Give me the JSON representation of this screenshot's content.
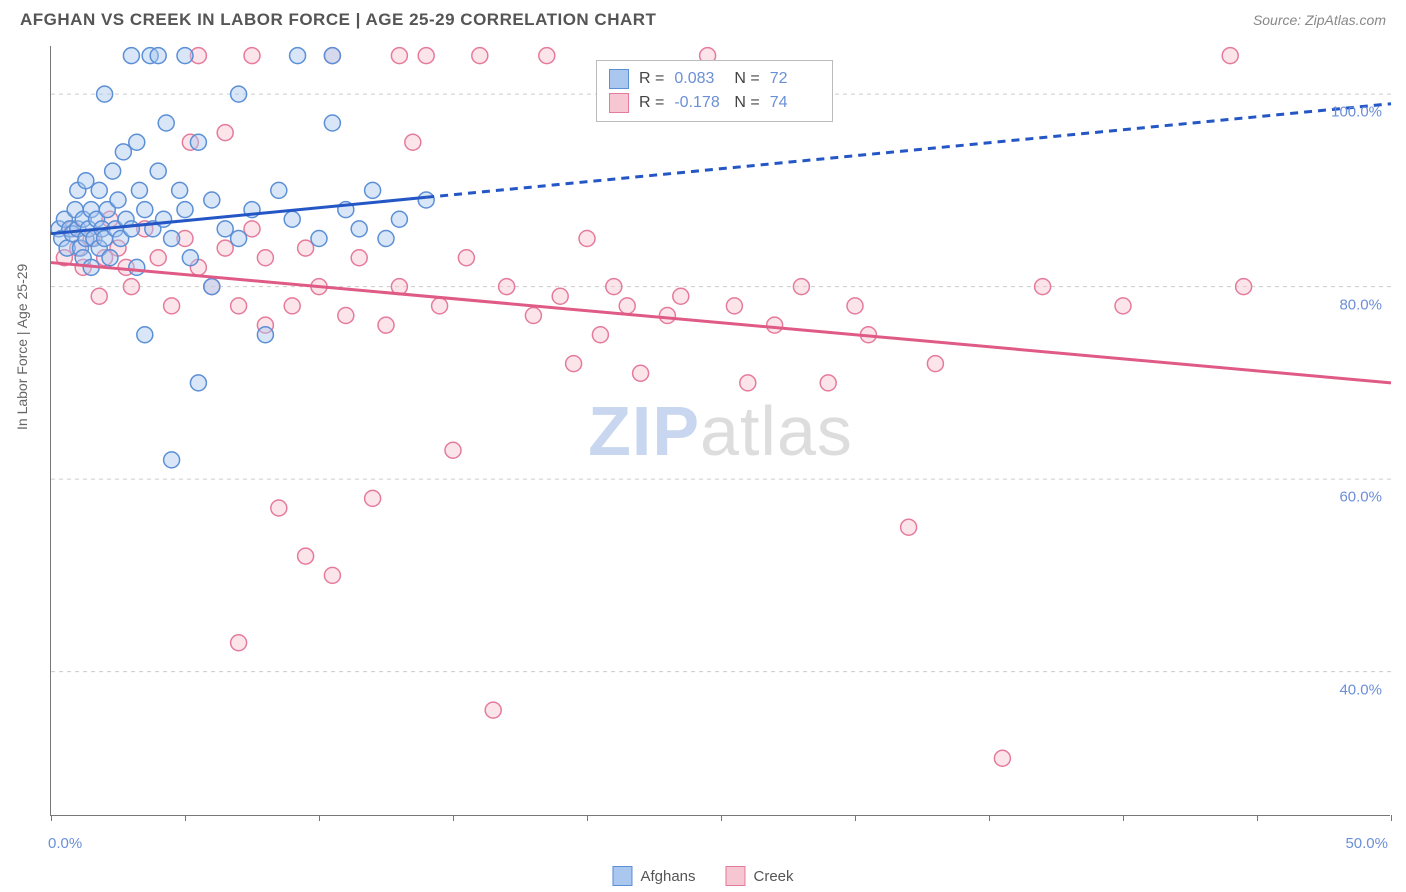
{
  "header": {
    "title": "AFGHAN VS CREEK IN LABOR FORCE | AGE 25-29 CORRELATION CHART",
    "source": "Source: ZipAtlas.com"
  },
  "axes": {
    "y_title": "In Labor Force | Age 25-29",
    "x_min_label": "0.0%",
    "x_max_label": "50.0%",
    "xlim": [
      0,
      50
    ],
    "ylim": [
      25,
      105
    ],
    "x_ticks": [
      0,
      5,
      10,
      15,
      20,
      25,
      30,
      35,
      40,
      45,
      50
    ],
    "y_grid": [
      40,
      60,
      80,
      100
    ],
    "y_labels": [
      "40.0%",
      "60.0%",
      "80.0%",
      "100.0%"
    ]
  },
  "colors": {
    "blue_fill": "#a9c7ef",
    "blue_stroke": "#5b8fd6",
    "pink_fill": "#f6c6d2",
    "pink_stroke": "#e67a9b",
    "blue_line": "#2457c5",
    "pink_line": "#e05a86",
    "grid": "#cccccc",
    "text_axis": "#6b8fd6",
    "bg": "#ffffff"
  },
  "legend_stats": {
    "rows": [
      {
        "swatch_fill": "#a9c7ef",
        "swatch_stroke": "#5b8fd6",
        "r": "0.083",
        "n": "72"
      },
      {
        "swatch_fill": "#f6c6d2",
        "swatch_stroke": "#e67a9b",
        "r": "-0.178",
        "n": "74"
      }
    ],
    "r_label": "R =",
    "n_label": "N ="
  },
  "bottom_legend": {
    "items": [
      {
        "swatch_fill": "#a9c7ef",
        "swatch_stroke": "#5b8fd6",
        "label": "Afghans"
      },
      {
        "swatch_fill": "#f6c6d2",
        "swatch_stroke": "#e67a9b",
        "label": "Creek"
      }
    ]
  },
  "watermark": {
    "part1": "ZIP",
    "part2": "atlas"
  },
  "series_blue": {
    "trend": {
      "x1": 0,
      "y1": 85.5,
      "x2": 50,
      "y2": 99,
      "solid_until_x": 14
    },
    "points": [
      [
        0.3,
        86
      ],
      [
        0.4,
        85
      ],
      [
        0.5,
        87
      ],
      [
        0.6,
        84
      ],
      [
        0.7,
        86
      ],
      [
        0.8,
        85.5
      ],
      [
        0.9,
        88
      ],
      [
        1.0,
        86
      ],
      [
        1.0,
        90
      ],
      [
        1.1,
        84
      ],
      [
        1.2,
        87
      ],
      [
        1.2,
        83
      ],
      [
        1.3,
        85
      ],
      [
        1.3,
        91
      ],
      [
        1.4,
        86
      ],
      [
        1.5,
        88
      ],
      [
        1.5,
        82
      ],
      [
        1.6,
        85
      ],
      [
        1.7,
        87
      ],
      [
        1.8,
        84
      ],
      [
        1.8,
        90
      ],
      [
        1.9,
        86
      ],
      [
        2.0,
        85
      ],
      [
        2.0,
        100
      ],
      [
        2.1,
        88
      ],
      [
        2.2,
        83
      ],
      [
        2.3,
        92
      ],
      [
        2.4,
        86
      ],
      [
        2.5,
        89
      ],
      [
        2.6,
        85
      ],
      [
        2.7,
        94
      ],
      [
        2.8,
        87
      ],
      [
        3.0,
        86
      ],
      [
        3.0,
        104
      ],
      [
        3.2,
        95
      ],
      [
        3.2,
        82
      ],
      [
        3.3,
        90
      ],
      [
        3.5,
        88
      ],
      [
        3.5,
        75
      ],
      [
        3.7,
        104
      ],
      [
        3.8,
        86
      ],
      [
        4.0,
        92
      ],
      [
        4.0,
        104
      ],
      [
        4.2,
        87
      ],
      [
        4.3,
        97
      ],
      [
        4.5,
        85
      ],
      [
        4.5,
        62
      ],
      [
        4.8,
        90
      ],
      [
        5.0,
        88
      ],
      [
        5.0,
        104
      ],
      [
        5.2,
        83
      ],
      [
        5.5,
        95
      ],
      [
        5.5,
        70
      ],
      [
        6.0,
        89
      ],
      [
        6.0,
        80
      ],
      [
        6.5,
        86
      ],
      [
        7.0,
        100
      ],
      [
        7.0,
        85
      ],
      [
        7.5,
        88
      ],
      [
        8.0,
        75
      ],
      [
        8.5,
        90
      ],
      [
        9.0,
        87
      ],
      [
        9.2,
        104
      ],
      [
        10.0,
        85
      ],
      [
        10.5,
        97
      ],
      [
        10.5,
        104
      ],
      [
        11.0,
        88
      ],
      [
        11.5,
        86
      ],
      [
        12.0,
        90
      ],
      [
        12.5,
        85
      ],
      [
        13.0,
        87
      ],
      [
        14.0,
        89
      ]
    ]
  },
  "series_pink": {
    "trend": {
      "x1": 0,
      "y1": 82.5,
      "x2": 50,
      "y2": 70
    },
    "points": [
      [
        0.5,
        83
      ],
      [
        0.8,
        86
      ],
      [
        1.0,
        84
      ],
      [
        1.2,
        82
      ],
      [
        1.5,
        85
      ],
      [
        1.8,
        79
      ],
      [
        2.0,
        83
      ],
      [
        2.2,
        87
      ],
      [
        2.5,
        84
      ],
      [
        2.8,
        82
      ],
      [
        3.0,
        80
      ],
      [
        3.5,
        86
      ],
      [
        4.0,
        83
      ],
      [
        4.5,
        78
      ],
      [
        5.0,
        85
      ],
      [
        5.2,
        95
      ],
      [
        5.5,
        82
      ],
      [
        5.5,
        104
      ],
      [
        6.0,
        80
      ],
      [
        6.5,
        96
      ],
      [
        6.5,
        84
      ],
      [
        7.0,
        78
      ],
      [
        7.0,
        43
      ],
      [
        7.5,
        104
      ],
      [
        7.5,
        86
      ],
      [
        8.0,
        76
      ],
      [
        8.0,
        83
      ],
      [
        8.5,
        57
      ],
      [
        9.0,
        78
      ],
      [
        9.5,
        84
      ],
      [
        9.5,
        52
      ],
      [
        10.0,
        80
      ],
      [
        10.5,
        104
      ],
      [
        10.5,
        50
      ],
      [
        11.0,
        77
      ],
      [
        11.5,
        83
      ],
      [
        12.0,
        58
      ],
      [
        12.5,
        76
      ],
      [
        13.0,
        104
      ],
      [
        13.0,
        80
      ],
      [
        13.5,
        95
      ],
      [
        14.0,
        104
      ],
      [
        14.5,
        78
      ],
      [
        15.0,
        63
      ],
      [
        15.5,
        83
      ],
      [
        16.0,
        104
      ],
      [
        16.5,
        36
      ],
      [
        17.0,
        80
      ],
      [
        18.0,
        77
      ],
      [
        18.5,
        104
      ],
      [
        19.0,
        79
      ],
      [
        19.5,
        72
      ],
      [
        20.0,
        85
      ],
      [
        20.5,
        75
      ],
      [
        21.0,
        80
      ],
      [
        21.5,
        78
      ],
      [
        22.0,
        71
      ],
      [
        23.0,
        77
      ],
      [
        23.5,
        79
      ],
      [
        24.5,
        104
      ],
      [
        25.5,
        78
      ],
      [
        26.0,
        70
      ],
      [
        27.0,
        76
      ],
      [
        28.0,
        80
      ],
      [
        29.0,
        70
      ],
      [
        30.0,
        78
      ],
      [
        30.5,
        75
      ],
      [
        32.0,
        55
      ],
      [
        33.0,
        72
      ],
      [
        35.5,
        31
      ],
      [
        37.0,
        80
      ],
      [
        40.0,
        78
      ],
      [
        44.0,
        104
      ],
      [
        44.5,
        80
      ]
    ]
  },
  "marker": {
    "radius": 8,
    "stroke_width": 1.5,
    "fill_opacity": 0.45
  },
  "trend_style": {
    "width": 3,
    "dash": "8,6"
  }
}
